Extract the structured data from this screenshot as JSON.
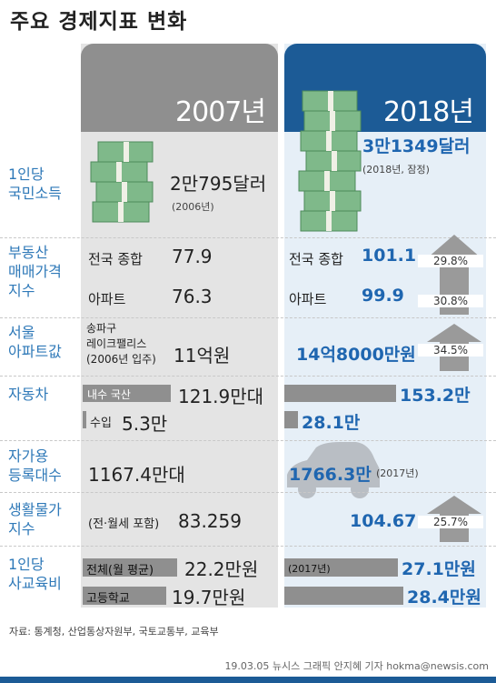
{
  "title": "주요 경제지표 변화",
  "years": {
    "y2007": "2007년",
    "y2018": "2018년"
  },
  "rows": {
    "income": {
      "label": [
        "1인당",
        "국민소득"
      ],
      "v2007": "2만795달러",
      "v2007_note": "(2006년)",
      "v2018": "3만1349달러",
      "v2018_note": "(2018년, 잠정)"
    },
    "realestate": {
      "label": [
        "부동산",
        "매매가격",
        "지수"
      ],
      "nat_label": "전국 종합",
      "apt_label": "아파트",
      "nat_2007": "77.9",
      "apt_2007": "76.3",
      "nat_2018": "101.1",
      "apt_2018": "99.9",
      "nat_pct": "29.8%",
      "apt_pct": "30.8%"
    },
    "seoul": {
      "label": [
        "서울",
        "아파트값"
      ],
      "sub": [
        "송파구",
        "레이크팰리스",
        "(2006년 입주)"
      ],
      "v2007": "11억원",
      "v2018": "14억8000만원",
      "pct": "34.5%"
    },
    "car": {
      "label": [
        "자동차"
      ],
      "dom_label": "내수 국산",
      "imp_label": "수입",
      "dom_2007": "121.9만대",
      "imp_2007": "5.3만",
      "dom_2018": "153.2만",
      "imp_2018": "28.1만"
    },
    "registered": {
      "label": [
        "자가용",
        "등록대수"
      ],
      "v2007": "1167.4만대",
      "v2018": "1766.3만",
      "v2018_note": "(2017년)"
    },
    "cpi": {
      "label": [
        "생활물가",
        "지수"
      ],
      "note": "(전·월세 포함)",
      "v2007": "83.259",
      "v2018": "104.67",
      "pct": "25.7%"
    },
    "edu": {
      "label": [
        "1인당",
        "사교육비"
      ],
      "all_label": "전체(월 평균)",
      "hs_label": "고등학교",
      "all_2007": "22.2만원",
      "hs_2007": "19.7만원",
      "all_2018": "27.1만원",
      "hs_2018": "28.4만원",
      "all_2018_note": "(2017년)"
    }
  },
  "chart_data": {
    "type": "table",
    "title": "주요 경제지표 변화",
    "columns": [
      "2007년",
      "2018년"
    ],
    "rows": [
      {
        "indicator": "1인당 국민소득",
        "2007": "2만795달러 (2006년)",
        "2018": "3만1349달러 (2018년, 잠정)"
      },
      {
        "indicator": "부동산 매매가격 지수 - 전국 종합",
        "2007": 77.9,
        "2018": 101.1,
        "change": "29.8%"
      },
      {
        "indicator": "부동산 매매가격 지수 - 아파트",
        "2007": 76.3,
        "2018": 99.9,
        "change": "30.8%"
      },
      {
        "indicator": "서울 아파트값 - 송파구 레이크팰리스 (2006년 입주)",
        "2007": "11억원",
        "2018": "14억8000만원",
        "change": "34.5%"
      },
      {
        "indicator": "자동차 - 내수 국산",
        "2007": 121.9,
        "2018": 153.2,
        "unit": "만대"
      },
      {
        "indicator": "자동차 - 수입",
        "2007": 5.3,
        "2018": 28.1,
        "unit": "만"
      },
      {
        "indicator": "자가용 등록대수",
        "2007": 1167.4,
        "2018": 1766.3,
        "unit": "만대",
        "note_2018": "(2017년)"
      },
      {
        "indicator": "생활물가 지수 (전·월세 포함)",
        "2007": 83.259,
        "2018": 104.67,
        "change": "25.7%"
      },
      {
        "indicator": "1인당 사교육비 - 전체(월 평균)",
        "2007": 22.2,
        "2018": 27.1,
        "unit": "만원",
        "note_2018": "(2017년)"
      },
      {
        "indicator": "1인당 사교육비 - 고등학교",
        "2007": 19.7,
        "2018": 28.4,
        "unit": "만원"
      }
    ]
  },
  "source": "자료: 통계청, 산업통상자원부, 국토교통부, 교육부",
  "credit": "19.03.05 뉴시스 그래픽 안지혜 기자 hokma@newsis.com",
  "colors": {
    "blue": "#1c5b96",
    "label_blue": "#2f79b8",
    "gray": "#8f8f8f",
    "money": "#7fb98a"
  }
}
